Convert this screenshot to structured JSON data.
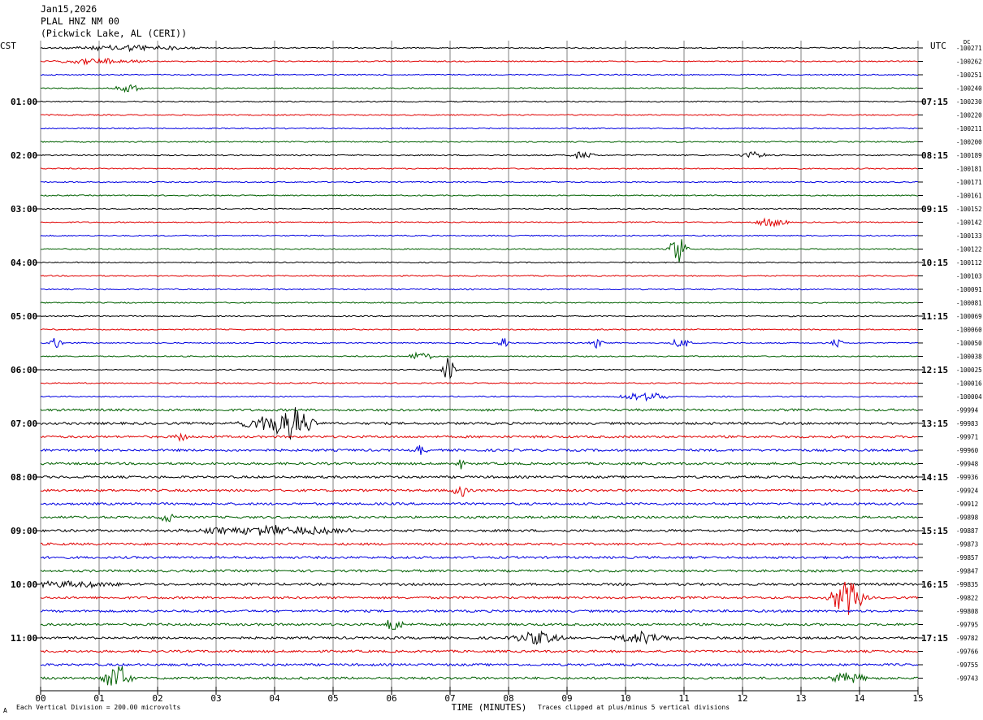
{
  "header": {
    "date": "Jan15,2026",
    "station": "PLAL HNZ NM 00",
    "location": "(Pickwick Lake, AL (CERI))"
  },
  "left_timezone": "CST",
  "right_timezone": "UTC",
  "dc_label": "DC",
  "footer": {
    "scale_note": "Each Vertical Division = 200.00 microvolts",
    "clip_note": "Traces clipped at plus/minus 5 vertical divisions",
    "corner_mark": "A"
  },
  "colors": {
    "cycle": [
      "#000000",
      "#e00000",
      "#0000e0",
      "#006000"
    ],
    "grid": "#808080"
  },
  "chart_data": {
    "type": "helicorder",
    "xlabel": "TIME (MINUTES)",
    "x_ticks": [
      "00",
      "01",
      "02",
      "03",
      "04",
      "05",
      "06",
      "07",
      "08",
      "09",
      "10",
      "11",
      "12",
      "13",
      "14",
      "15"
    ],
    "xlim": [
      0,
      15
    ],
    "left_hour_labels": [
      "01:00",
      "02:00",
      "03:00",
      "04:00",
      "05:00",
      "06:00",
      "07:00",
      "08:00",
      "09:00",
      "10:00",
      "11:00"
    ],
    "right_hour_labels": [
      "07:15",
      "08:15",
      "09:15",
      "10:15",
      "11:15",
      "12:15",
      "13:15",
      "14:15",
      "15:15",
      "16:15",
      "17:15"
    ],
    "dc_offsets": [
      "-100271",
      "-100262",
      "-100251",
      "-100240",
      "-100230",
      "-100220",
      "-100211",
      "-100200",
      "-100189",
      "-100181",
      "-100171",
      "-100161",
      "-100152",
      "-100142",
      "-100133",
      "-100122",
      "-100112",
      "-100103",
      "-100091",
      "-100081",
      "-100069",
      "-100060",
      "-100050",
      "-100038",
      "-100025",
      "-100016",
      "-100004",
      "-99994",
      "-99983",
      "-99971",
      "-99960",
      "-99948",
      "-99936",
      "-99924",
      "-99912",
      "-99898",
      "-99887",
      "-99873",
      "-99857",
      "-99847",
      "-99835",
      "-99822",
      "-99808",
      "-99795",
      "-99782",
      "-99766",
      "-99755",
      "-99743"
    ],
    "events": [
      {
        "trace": 0,
        "minute": 1.5,
        "amp": 4,
        "dur": 1.5
      },
      {
        "trace": 1,
        "minute": 1.0,
        "amp": 4,
        "dur": 1.0
      },
      {
        "trace": 3,
        "minute": 1.5,
        "amp": 6,
        "dur": 0.3
      },
      {
        "trace": 8,
        "minute": 9.25,
        "amp": 5,
        "dur": 0.3
      },
      {
        "trace": 8,
        "minute": 12.2,
        "amp": 5,
        "dur": 0.3
      },
      {
        "trace": 13,
        "minute": 12.5,
        "amp": 6,
        "dur": 0.4
      },
      {
        "trace": 15,
        "minute": 10.9,
        "amp": 20,
        "dur": 0.2
      },
      {
        "trace": 22,
        "minute": 0.25,
        "amp": 8,
        "dur": 0.15
      },
      {
        "trace": 22,
        "minute": 7.9,
        "amp": 8,
        "dur": 0.15
      },
      {
        "trace": 22,
        "minute": 9.5,
        "amp": 7,
        "dur": 0.15
      },
      {
        "trace": 22,
        "minute": 10.95,
        "amp": 9,
        "dur": 0.2
      },
      {
        "trace": 22,
        "minute": 13.6,
        "amp": 7,
        "dur": 0.15
      },
      {
        "trace": 23,
        "minute": 6.5,
        "amp": 6,
        "dur": 0.3
      },
      {
        "trace": 24,
        "minute": 6.98,
        "amp": 18,
        "dur": 0.15
      },
      {
        "trace": 26,
        "minute": 10.3,
        "amp": 6,
        "dur": 0.6
      },
      {
        "trace": 28,
        "minute": 4.3,
        "amp": 22,
        "dur": 0.5
      },
      {
        "trace": 28,
        "minute": 3.8,
        "amp": 10,
        "dur": 0.6
      },
      {
        "trace": 29,
        "minute": 2.4,
        "amp": 6,
        "dur": 0.15
      },
      {
        "trace": 30,
        "minute": 6.5,
        "amp": 6,
        "dur": 0.15
      },
      {
        "trace": 31,
        "minute": 7.15,
        "amp": 10,
        "dur": 0.1
      },
      {
        "trace": 33,
        "minute": 7.2,
        "amp": 8,
        "dur": 0.2
      },
      {
        "trace": 35,
        "minute": 2.2,
        "amp": 6,
        "dur": 0.3
      },
      {
        "trace": 36,
        "minute": 4.0,
        "amp": 6,
        "dur": 2.0
      },
      {
        "trace": 40,
        "minute": 0.5,
        "amp": 5,
        "dur": 1.0
      },
      {
        "trace": 41,
        "minute": 13.8,
        "amp": 24,
        "dur": 0.4
      },
      {
        "trace": 43,
        "minute": 6.05,
        "amp": 12,
        "dur": 0.2
      },
      {
        "trace": 44,
        "minute": 8.5,
        "amp": 8,
        "dur": 0.6
      },
      {
        "trace": 44,
        "minute": 10.3,
        "amp": 8,
        "dur": 0.6
      },
      {
        "trace": 47,
        "minute": 1.3,
        "amp": 20,
        "dur": 0.3
      },
      {
        "trace": 47,
        "minute": 13.8,
        "amp": 8,
        "dur": 0.4
      }
    ]
  }
}
